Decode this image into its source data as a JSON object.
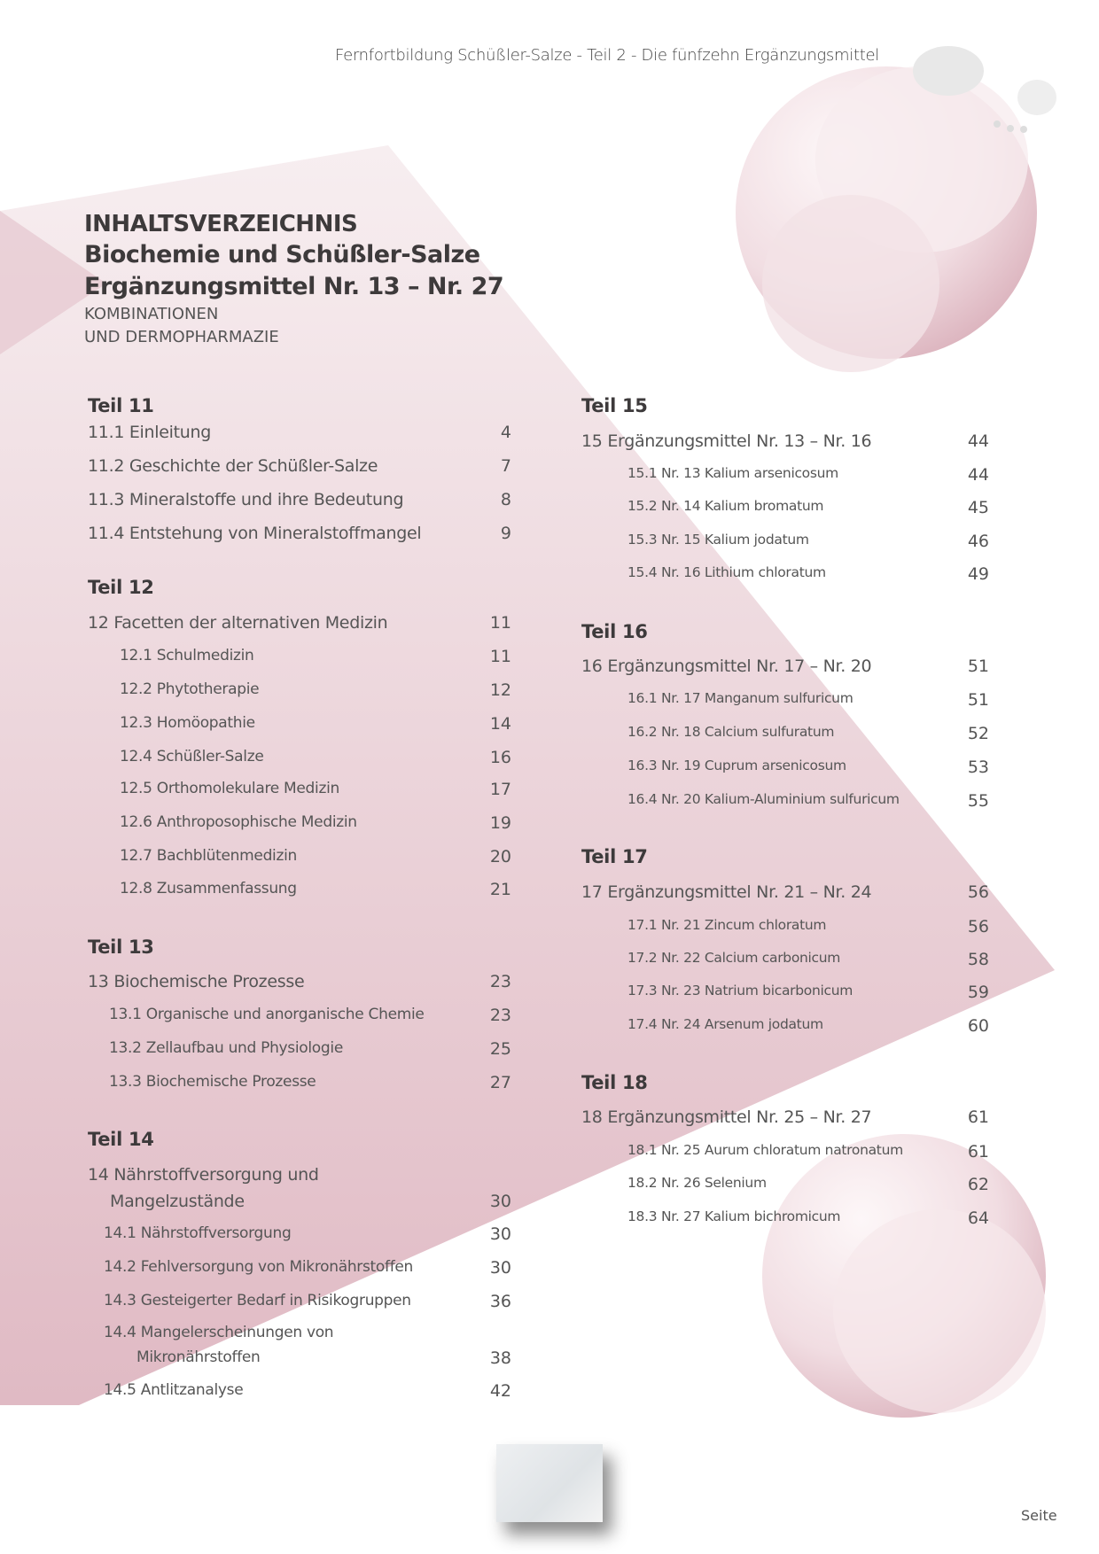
{
  "header": {
    "running_title": "Fernfortbildung Schüßler-Salze - Teil 2 - Die fünfzehn Ergänzungsmittel"
  },
  "title": {
    "line1": "INHALTSVERZEICHNIS",
    "line2": "Biochemie und Schüßler-Salze",
    "line3": "Ergänzungsmittel Nr. 13 – Nr. 27",
    "line4": "KOMBINATIONEN",
    "line5": "UND DERMOPHARMAZIE"
  },
  "colors": {
    "pink_light": "#f5e9ec",
    "pink_dark": "#e2bfc9",
    "text": "#555555",
    "heading": "#3d3a3b"
  },
  "toc": [
    {
      "heading": "Teil 11",
      "entries": [
        {
          "label": "11.1 Einleitung",
          "page": "4"
        },
        {
          "label": "11.2 Geschichte der Schüßler-Salze",
          "page": "7"
        },
        {
          "label": "11.3 Mineralstoffe und ihre Bedeutung",
          "page": "8"
        },
        {
          "label": "11.4 Entstehung von Mineralstoffmangel",
          "page": "9"
        }
      ]
    },
    {
      "heading": "Teil 12",
      "entries": [
        {
          "label": "12 Facetten der alternativen Medizin",
          "page": "11"
        },
        {
          "label": "12.1 Schulmedizin",
          "page": "11"
        },
        {
          "label": "12.2 Phytotherapie",
          "page": "12"
        },
        {
          "label": "12.3 Homöopathie",
          "page": "14"
        },
        {
          "label": "12.4 Schüßler-Salze",
          "page": "16"
        },
        {
          "label": "12.5 Orthomolekulare Medizin",
          "page": "17"
        },
        {
          "label": "12.6 Anthroposophische Medizin",
          "page": "19"
        },
        {
          "label": "12.7 Bachblütenmedizin",
          "page": "20"
        },
        {
          "label": "12.8 Zusammenfassung",
          "page": "21"
        }
      ]
    },
    {
      "heading": "Teil 13",
      "entries": [
        {
          "label": "13 Biochemische Prozesse",
          "page": "23"
        },
        {
          "label": "13.1 Organische und anorganische Chemie",
          "page": "23"
        },
        {
          "label": "13.2 Zellaufbau und Physiologie",
          "page": "25"
        },
        {
          "label": "13.3 Biochemische Prozesse",
          "page": "27"
        }
      ]
    },
    {
      "heading": "Teil 14",
      "entries": [
        {
          "label": "14 Nährstoffversorgung und",
          "cont": "Mangelzustände",
          "page": "30"
        },
        {
          "label": "14.1 Nährstoffversorgung",
          "page": "30"
        },
        {
          "label": "14.2 Fehlversorgung von Mikronährstoffen",
          "page": "30"
        },
        {
          "label": "14.3 Gesteigerter Bedarf in Risikogruppen",
          "page": "36"
        },
        {
          "label": "14.4 Mangelerscheinungen von",
          "cont": "Mikronährstoffen",
          "page": "38"
        },
        {
          "label": "14.5 Antlitzanalyse",
          "page": "42"
        }
      ]
    },
    {
      "heading": "Teil 15",
      "entries": [
        {
          "label": "15 Ergänzungsmittel Nr. 13 – Nr. 16",
          "page": "44"
        },
        {
          "label": "15.1 Nr. 13 Kalium arsenicosum",
          "page": "44"
        },
        {
          "label": "15.2 Nr. 14 Kalium bromatum",
          "page": "45"
        },
        {
          "label": "15.3 Nr. 15 Kalium jodatum",
          "page": "46"
        },
        {
          "label": "15.4 Nr. 16 Lithium chloratum",
          "page": "49"
        }
      ]
    },
    {
      "heading": "Teil 16",
      "entries": [
        {
          "label": "16 Ergänzungsmittel Nr. 17 – Nr. 20",
          "page": "51"
        },
        {
          "label": "16.1 Nr. 17 Manganum sulfuricum",
          "page": "51"
        },
        {
          "label": "16.2 Nr. 18 Calcium sulfuratum",
          "page": "52"
        },
        {
          "label": "16.3 Nr. 19 Cuprum arsenicosum",
          "page": "53"
        },
        {
          "label": "16.4 Nr. 20 Kalium-Aluminium sulfuricum",
          "page": "55"
        }
      ]
    },
    {
      "heading": "Teil 17",
      "entries": [
        {
          "label": "17 Ergänzungsmittel Nr. 21 – Nr. 24",
          "page": "56"
        },
        {
          "label": "17.1 Nr. 21 Zincum chloratum",
          "page": "56"
        },
        {
          "label": "17.2 Nr. 22 Calcium carbonicum",
          "page": "58"
        },
        {
          "label": "17.3 Nr. 23 Natrium bicarbonicum",
          "page": "59"
        },
        {
          "label": "17.4 Nr. 24 Arsenum jodatum",
          "page": "60"
        }
      ]
    },
    {
      "heading": "Teil 18",
      "entries": [
        {
          "label": "18 Ergänzungsmittel Nr. 25 – Nr. 27",
          "page": "61"
        },
        {
          "label": "18.1 Nr. 25 Aurum chloratum natronatum",
          "page": "61"
        },
        {
          "label": "18.2 Nr. 26 Selenium",
          "page": "62"
        },
        {
          "label": "18.3 Nr. 27 Kalium bichromicum",
          "page": "64"
        }
      ]
    }
  ],
  "footer": {
    "page_label": "Seite"
  }
}
